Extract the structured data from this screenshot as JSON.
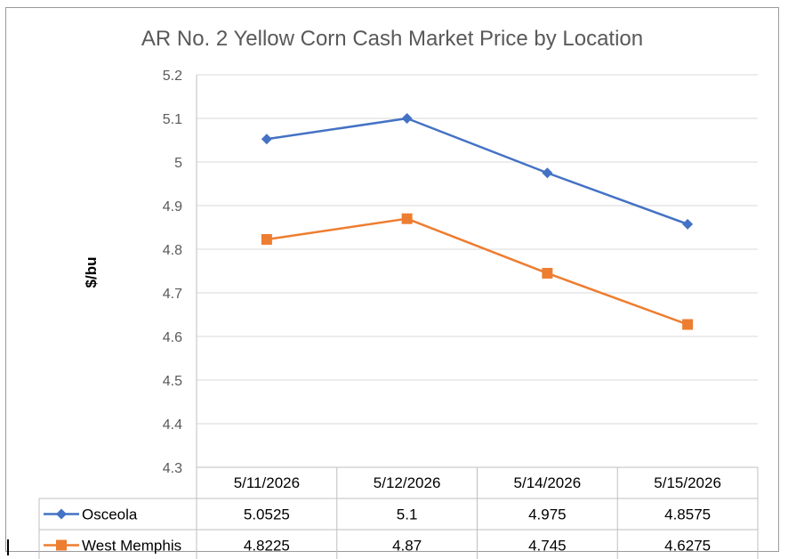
{
  "chart_data": {
    "type": "line",
    "title": "AR No. 2 Yellow Corn Cash Market Price by Location",
    "xlabel": "",
    "ylabel": "$/bu",
    "categories": [
      "5/11/2026",
      "5/12/2026",
      "5/14/2026",
      "5/15/2026"
    ],
    "ylim": [
      4.3,
      5.2
    ],
    "y_ticks": [
      "4.3",
      "4.4",
      "4.5",
      "4.6",
      "4.7",
      "4.8",
      "4.9",
      "5",
      "5.1",
      "5.2"
    ],
    "grid": true,
    "legend_placement": "data-table",
    "series": [
      {
        "name": "Osceola",
        "values": [
          5.0525,
          5.1,
          4.975,
          4.8575
        ],
        "labels": [
          "5.0525",
          "5.1",
          "4.975",
          "4.8575"
        ],
        "color": "#4472C4",
        "marker": "diamond"
      },
      {
        "name": "West Memphis",
        "values": [
          4.8225,
          4.87,
          4.745,
          4.6275
        ],
        "labels": [
          "4.8225",
          "4.87",
          "4.745",
          "4.6275"
        ],
        "color": "#ED7D31",
        "marker": "square"
      }
    ]
  }
}
